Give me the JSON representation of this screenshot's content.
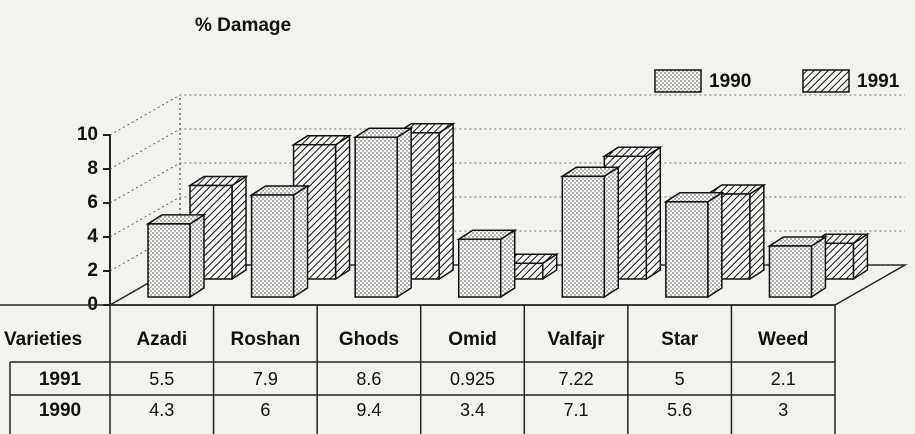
{
  "chart_data": {
    "type": "bar3d",
    "title": "% Damage",
    "x_label": "Varieties",
    "categories": [
      "Azadi",
      "Roshan",
      "Ghods",
      "Omid",
      "Valfajr",
      "Star",
      "Weed"
    ],
    "series": [
      {
        "name": "1990",
        "color": "#ffffff",
        "values": [
          4.3,
          6,
          9.4,
          3.4,
          7.1,
          5.6,
          3
        ]
      },
      {
        "name": "1991",
        "color": "#ffffff",
        "values": [
          5.5,
          7.9,
          8.6,
          0.925,
          7.22,
          5,
          2.1
        ]
      }
    ],
    "ylim": [
      0,
      10
    ],
    "yticks": [
      0,
      2,
      4,
      6,
      8,
      10
    ],
    "grid": true,
    "legend": "top-right"
  }
}
